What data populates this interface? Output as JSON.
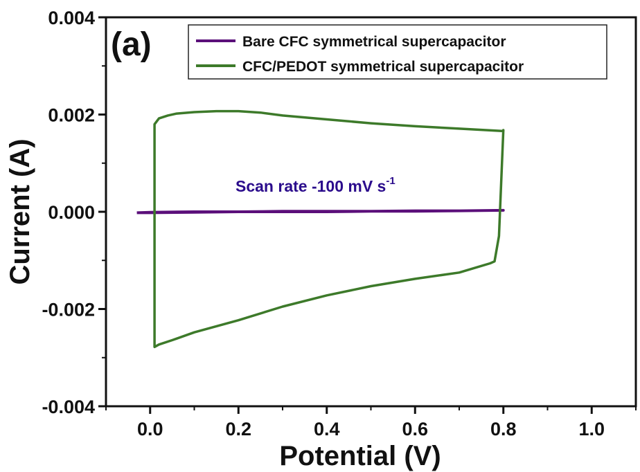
{
  "chart_data": {
    "type": "line",
    "panel_label": "(a)",
    "xlabel": "Potential (V)",
    "ylabel": "Current (A)",
    "xlim": [
      -0.1,
      1.1
    ],
    "ylim": [
      -0.004,
      0.004
    ],
    "x_ticks": [
      "0.0",
      "0.2",
      "0.4",
      "0.6",
      "0.8",
      "1.0"
    ],
    "y_ticks": [
      "-0.004",
      "-0.002",
      "0.000",
      "0.002",
      "0.004"
    ],
    "grid": false,
    "legend_position": "top-right",
    "annotation": {
      "text": "Scan rate -100 mV s",
      "superscript": "-1",
      "color": "#2b0c8c"
    },
    "series": [
      {
        "name": "Bare CFC symmetrical supercapacitor",
        "color": "#5b0f7a",
        "x": [
          -0.03,
          0.0,
          0.1,
          0.2,
          0.3,
          0.4,
          0.5,
          0.6,
          0.7,
          0.8,
          0.7,
          0.6,
          0.5,
          0.4,
          0.3,
          0.2,
          0.1,
          0.0,
          -0.03
        ],
        "y": [
          -2e-05,
          -1e-05,
          0.0,
          0.0,
          1e-05,
          1e-05,
          1e-05,
          2e-05,
          2e-05,
          3e-05,
          2e-05,
          1e-05,
          1e-05,
          0.0,
          0.0,
          0.0,
          -1e-05,
          -2e-05,
          -2e-05
        ]
      },
      {
        "name": "CFC/PEDOT symmetrical supercapacitor",
        "color": "#3d7a2a",
        "x": [
          0.01,
          0.01,
          0.02,
          0.04,
          0.06,
          0.1,
          0.15,
          0.2,
          0.25,
          0.3,
          0.4,
          0.5,
          0.6,
          0.7,
          0.8,
          0.8,
          0.79,
          0.78,
          0.77,
          0.7,
          0.6,
          0.5,
          0.4,
          0.3,
          0.2,
          0.1,
          0.05,
          0.02,
          0.01,
          0.01
        ],
        "y": [
          0.0014,
          0.0018,
          0.00192,
          0.00198,
          0.00202,
          0.00205,
          0.00207,
          0.00207,
          0.00204,
          0.00198,
          0.0019,
          0.00182,
          0.00176,
          0.00171,
          0.00166,
          0.00168,
          -0.0005,
          -0.00102,
          -0.00106,
          -0.00125,
          -0.00138,
          -0.00153,
          -0.00172,
          -0.00195,
          -0.00223,
          -0.00248,
          -0.00264,
          -0.00273,
          -0.00278,
          0.0014
        ]
      }
    ]
  }
}
